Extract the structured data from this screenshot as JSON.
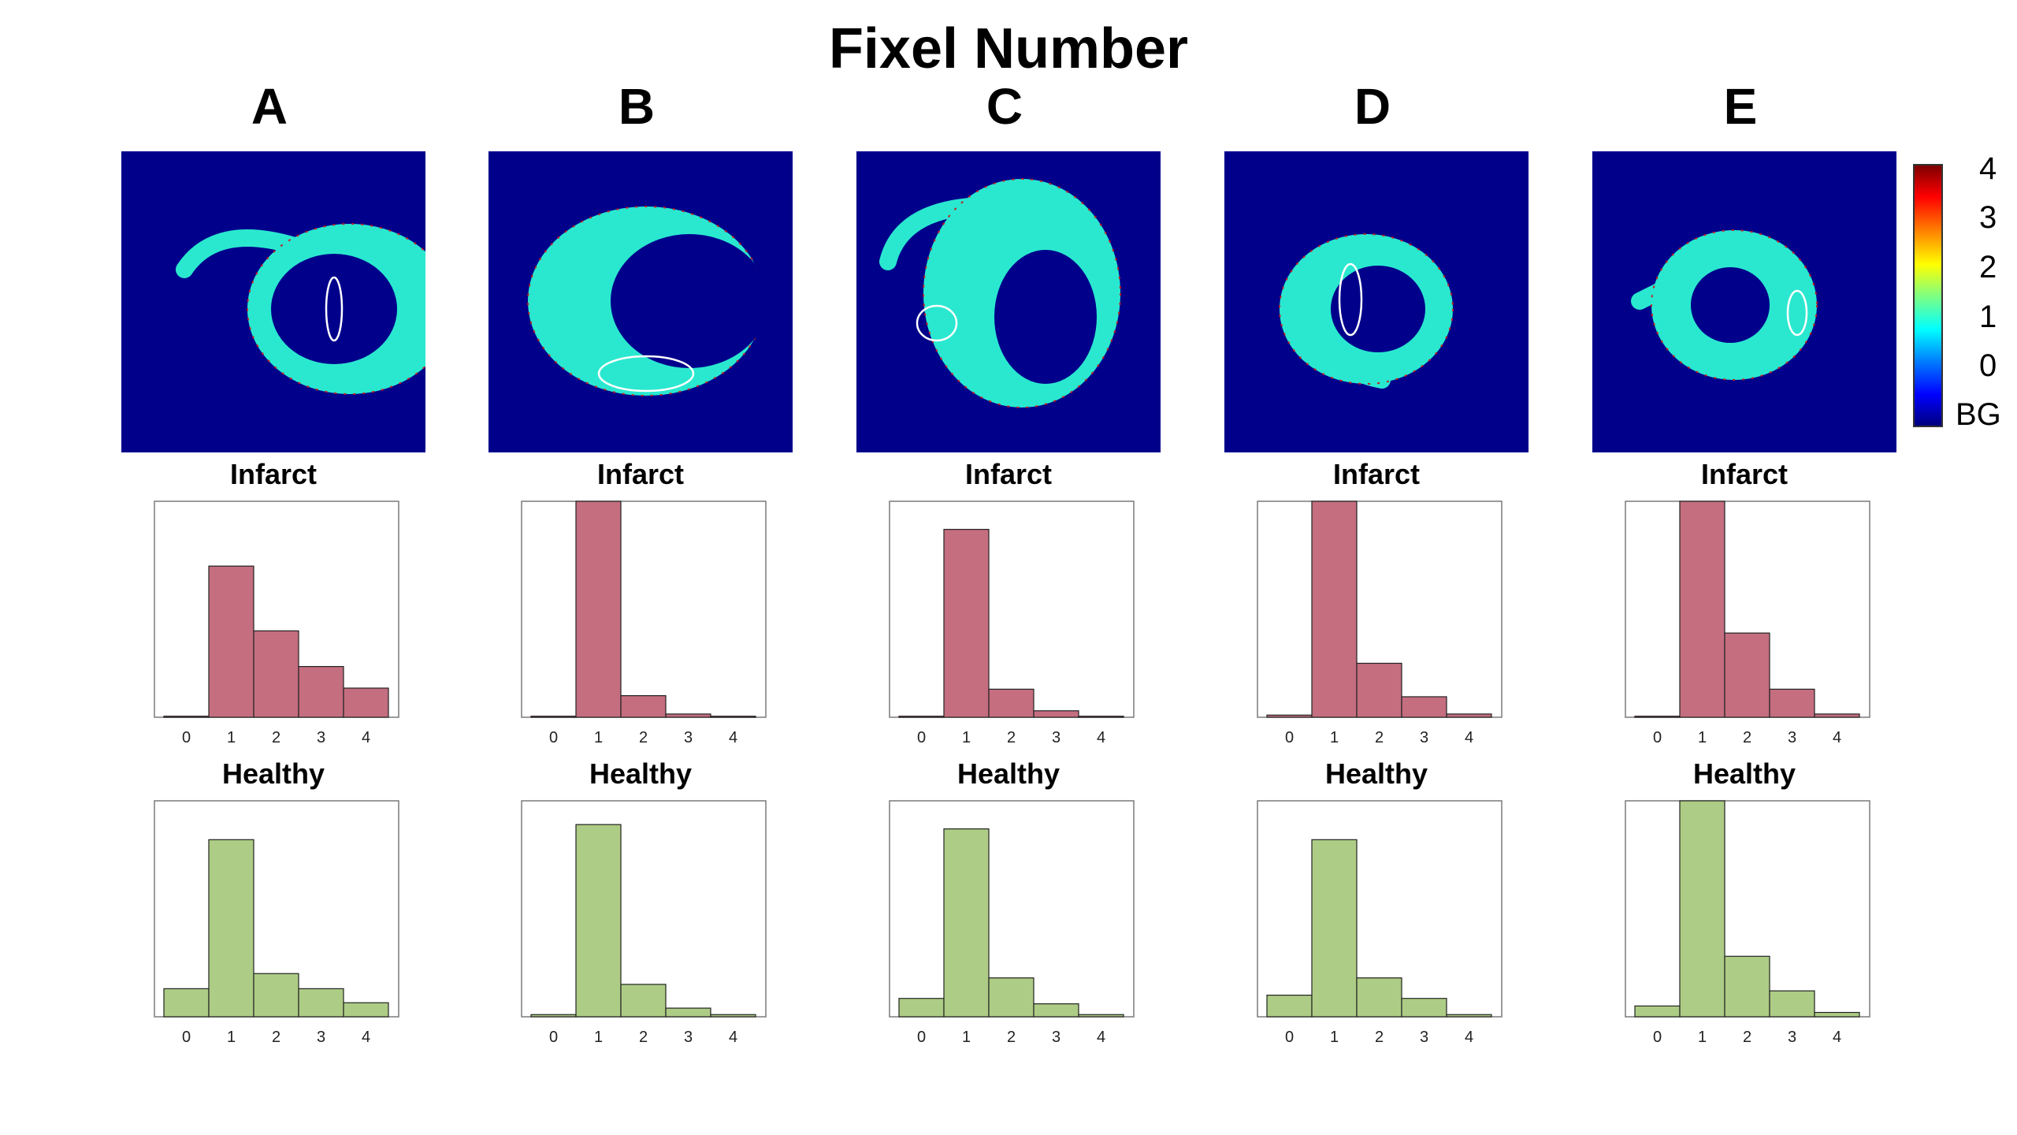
{
  "figure": {
    "title": "Fixel Number",
    "infarct_color": "#c46e80",
    "healthy_color": "#adcc85",
    "map_background": "#00008b",
    "map_tissue_color": "#2ae8cf"
  },
  "colorbar": {
    "labels": [
      "4",
      "3",
      "2",
      "1",
      "0",
      "BG"
    ],
    "colormap": "jet"
  },
  "chart_data": [
    {
      "panel": "A",
      "title": "Infarct",
      "type": "bar",
      "categories": [
        "0",
        "1",
        "2",
        "3",
        "4"
      ],
      "values": [
        0.005,
        0.7,
        0.4,
        0.235,
        0.135
      ],
      "ylim": [
        0,
        1
      ],
      "tick_labels": [
        "0",
        "1",
        "2",
        "3",
        "4"
      ]
    },
    {
      "panel": "A",
      "title": "Healthy",
      "type": "bar",
      "categories": [
        "0",
        "1",
        "2",
        "3",
        "4"
      ],
      "values": [
        0.13,
        0.82,
        0.2,
        0.13,
        0.065
      ],
      "ylim": [
        0,
        1
      ],
      "tick_labels": [
        "0",
        "1",
        "2",
        "3",
        "4"
      ]
    },
    {
      "panel": "B",
      "title": "Infarct",
      "type": "bar",
      "categories": [
        "0",
        "1",
        "2",
        "3",
        "4"
      ],
      "values": [
        0.005,
        1.0,
        0.1,
        0.015,
        0.005
      ],
      "ylim": [
        0,
        1
      ],
      "tick_labels": [
        "0",
        "1",
        "2",
        "3",
        "4"
      ]
    },
    {
      "panel": "B",
      "title": "Healthy",
      "type": "bar",
      "categories": [
        "0",
        "1",
        "2",
        "3",
        "4"
      ],
      "values": [
        0.01,
        0.89,
        0.15,
        0.04,
        0.01
      ],
      "ylim": [
        0,
        1
      ],
      "tick_labels": [
        "0",
        "1",
        "2",
        "3",
        "4"
      ]
    },
    {
      "panel": "C",
      "title": "Infarct",
      "type": "bar",
      "categories": [
        "0",
        "1",
        "2",
        "3",
        "4"
      ],
      "values": [
        0.005,
        0.87,
        0.13,
        0.03,
        0.005
      ],
      "ylim": [
        0,
        1
      ],
      "tick_labels": [
        "0",
        "1",
        "2",
        "3",
        "4"
      ]
    },
    {
      "panel": "C",
      "title": "Healthy",
      "type": "bar",
      "categories": [
        "0",
        "1",
        "2",
        "3",
        "4"
      ],
      "values": [
        0.085,
        0.87,
        0.18,
        0.06,
        0.01
      ],
      "ylim": [
        0,
        1
      ],
      "tick_labels": [
        "0",
        "1",
        "2",
        "3",
        "4"
      ]
    },
    {
      "panel": "D",
      "title": "Infarct",
      "type": "bar",
      "categories": [
        "0",
        "1",
        "2",
        "3",
        "4"
      ],
      "values": [
        0.01,
        1.0,
        0.25,
        0.095,
        0.015
      ],
      "ylim": [
        0,
        1
      ],
      "tick_labels": [
        "0",
        "1",
        "2",
        "3",
        "4"
      ]
    },
    {
      "panel": "D",
      "title": "Healthy",
      "type": "bar",
      "categories": [
        "0",
        "1",
        "2",
        "3",
        "4"
      ],
      "values": [
        0.1,
        0.82,
        0.18,
        0.085,
        0.01
      ],
      "ylim": [
        0,
        1
      ],
      "tick_labels": [
        "0",
        "1",
        "2",
        "3",
        "4"
      ]
    },
    {
      "panel": "E",
      "title": "Infarct",
      "type": "bar",
      "categories": [
        "0",
        "1",
        "2",
        "3",
        "4"
      ],
      "values": [
        0.005,
        1.0,
        0.39,
        0.13,
        0.015
      ],
      "ylim": [
        0,
        1
      ],
      "tick_labels": [
        "0",
        "1",
        "2",
        "3",
        "4"
      ]
    },
    {
      "panel": "E",
      "title": "Healthy",
      "type": "bar",
      "categories": [
        "0",
        "1",
        "2",
        "3",
        "4"
      ],
      "values": [
        0.05,
        1.0,
        0.28,
        0.12,
        0.02
      ],
      "ylim": [
        0,
        1
      ],
      "tick_labels": [
        "0",
        "1",
        "2",
        "3",
        "4"
      ]
    }
  ]
}
